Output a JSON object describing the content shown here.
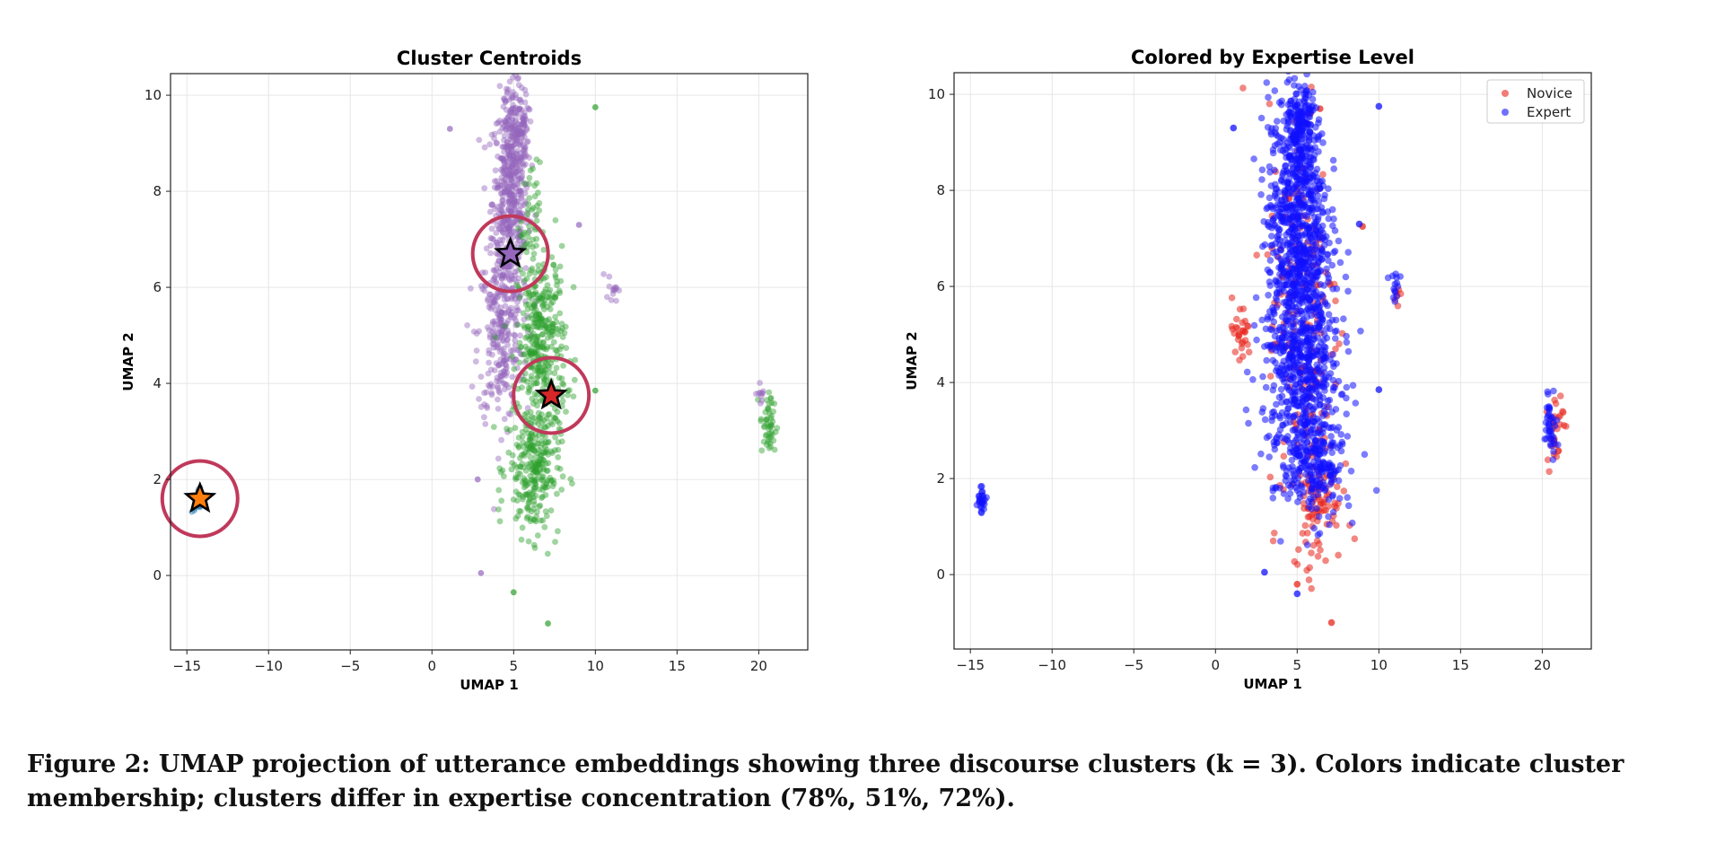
{
  "figure": {
    "caption": "Figure 2: UMAP projection of utterance embeddings showing three discourse clusters (k = 3). Colors indicate cluster membership; clusters differ in expertise concentration (78%, 51%, 72%)."
  },
  "colors": {
    "cluster_purple": "#9467bd",
    "cluster_green": "#2ca02c",
    "cluster_blue": "#1f77b4",
    "novice": "#e8251c",
    "expert": "#1010ff",
    "centroid_ring": "#c0395a",
    "star_orange": "#ff7f0e",
    "star_red": "#d62728",
    "star_purple": "#9467bd"
  },
  "chart_data": [
    {
      "type": "scatter",
      "title": "Cluster Centroids",
      "xlabel": "UMAP 1",
      "ylabel": "UMAP 2",
      "xlim": [
        -16,
        23
      ],
      "ylim": [
        -1.55,
        10.45
      ],
      "xticks": [
        -15,
        -10,
        -5,
        0,
        5,
        10,
        15,
        20
      ],
      "yticks": [
        0,
        2,
        4,
        6,
        8,
        10
      ],
      "grid": true,
      "legend": "none",
      "point_groups": [
        {
          "color": "#9467bd",
          "cx": 4.8,
          "cy": 7.8,
          "sx": 0.55,
          "sy": 1.1,
          "n": 500
        },
        {
          "color": "#9467bd",
          "cx": 4.2,
          "cy": 5.0,
          "sx": 0.7,
          "sy": 0.9,
          "n": 260
        },
        {
          "color": "#9467bd",
          "cx": 5.2,
          "cy": 9.3,
          "sx": 0.35,
          "sy": 0.4,
          "n": 120
        },
        {
          "color": "#2ca02c",
          "cx": 6.7,
          "cy": 4.8,
          "sx": 0.75,
          "sy": 1.0,
          "n": 380
        },
        {
          "color": "#2ca02c",
          "cx": 6.2,
          "cy": 2.2,
          "sx": 0.8,
          "sy": 0.7,
          "n": 260
        },
        {
          "color": "#2ca02c",
          "cx": 6.0,
          "cy": 7.4,
          "sx": 0.3,
          "sy": 0.6,
          "n": 40
        },
        {
          "color": "#2ca02c",
          "cx": 20.6,
          "cy": 3.1,
          "sx": 0.25,
          "sy": 0.35,
          "n": 50
        },
        {
          "color": "#9467bd",
          "cx": 20.2,
          "cy": 3.8,
          "sx": 0.15,
          "sy": 0.1,
          "n": 10
        },
        {
          "color": "#9467bd",
          "cx": 11.0,
          "cy": 6.0,
          "sx": 0.2,
          "sy": 0.15,
          "n": 14
        },
        {
          "color": "#1f77b4",
          "cx": -14.3,
          "cy": 1.55,
          "sx": 0.12,
          "sy": 0.15,
          "n": 22
        }
      ],
      "outliers": [
        {
          "x": 10.0,
          "y": 9.75,
          "color": "#2ca02c"
        },
        {
          "x": 1.1,
          "y": 9.3,
          "color": "#9467bd"
        },
        {
          "x": 9.0,
          "y": 7.3,
          "color": "#9467bd"
        },
        {
          "x": 3.0,
          "y": 0.05,
          "color": "#9467bd"
        },
        {
          "x": 5.0,
          "y": -0.35,
          "color": "#2ca02c"
        },
        {
          "x": 7.1,
          "y": -1.0,
          "color": "#2ca02c"
        },
        {
          "x": 10.0,
          "y": 3.85,
          "color": "#2ca02c"
        },
        {
          "x": 2.8,
          "y": 2.0,
          "color": "#9467bd"
        }
      ],
      "centroids": [
        {
          "x": 4.8,
          "y": 6.7,
          "color": "#9467bd"
        },
        {
          "x": 7.3,
          "y": 3.75,
          "color": "#d62728"
        },
        {
          "x": -14.2,
          "y": 1.6,
          "color": "#ff7f0e"
        }
      ]
    },
    {
      "type": "scatter",
      "title": "Colored by Expertise Level",
      "xlabel": "UMAP 1",
      "ylabel": "UMAP 2",
      "xlim": [
        -16,
        23
      ],
      "ylim": [
        -1.55,
        10.45
      ],
      "xticks": [
        -15,
        -10,
        -5,
        0,
        5,
        10,
        15,
        20
      ],
      "yticks": [
        0,
        2,
        4,
        6,
        8,
        10
      ],
      "grid": true,
      "legend": "top-right",
      "series": [
        {
          "name": "Novice",
          "color": "#e8251c",
          "point_groups": [
            {
              "cx": 5.4,
              "cy": 5.5,
              "sx": 1.1,
              "sy": 2.2,
              "n": 160
            },
            {
              "cx": 6.3,
              "cy": 1.6,
              "sx": 0.7,
              "sy": 0.7,
              "n": 90
            },
            {
              "cx": 1.5,
              "cy": 5.0,
              "sx": 0.35,
              "sy": 0.35,
              "n": 30
            },
            {
              "cx": 20.8,
              "cy": 3.1,
              "sx": 0.25,
              "sy": 0.4,
              "n": 28
            },
            {
              "cx": 11.1,
              "cy": 5.8,
              "sx": 0.15,
              "sy": 0.15,
              "n": 6
            }
          ],
          "outliers": [
            {
              "x": 7.1,
              "y": -1.0
            },
            {
              "x": 5.0,
              "y": -0.2
            },
            {
              "x": 9.0,
              "y": 7.25
            },
            {
              "x": 5.8,
              "y": 9.6
            },
            {
              "x": 6.4,
              "y": 9.7
            }
          ]
        },
        {
          "name": "Expert",
          "color": "#1010ff",
          "point_groups": [
            {
              "cx": 5.0,
              "cy": 7.5,
              "sx": 0.9,
              "sy": 1.3,
              "n": 700
            },
            {
              "cx": 5.3,
              "cy": 4.4,
              "sx": 1.2,
              "sy": 1.1,
              "n": 600
            },
            {
              "cx": 6.0,
              "cy": 2.3,
              "sx": 0.9,
              "sy": 0.6,
              "n": 230
            },
            {
              "cx": 5.3,
              "cy": 9.3,
              "sx": 0.4,
              "sy": 0.35,
              "n": 130
            },
            {
              "cx": 20.5,
              "cy": 3.2,
              "sx": 0.2,
              "sy": 0.35,
              "n": 40
            },
            {
              "cx": -14.3,
              "cy": 1.55,
              "sx": 0.12,
              "sy": 0.15,
              "n": 26
            },
            {
              "cx": 11.0,
              "cy": 6.0,
              "sx": 0.2,
              "sy": 0.15,
              "n": 14
            }
          ],
          "outliers": [
            {
              "x": 10.0,
              "y": 9.75
            },
            {
              "x": 1.1,
              "y": 9.3
            },
            {
              "x": 3.0,
              "y": 0.05
            },
            {
              "x": 5.0,
              "y": -0.4
            },
            {
              "x": 10.0,
              "y": 3.85
            },
            {
              "x": 8.8,
              "y": 7.3
            }
          ]
        }
      ]
    }
  ]
}
